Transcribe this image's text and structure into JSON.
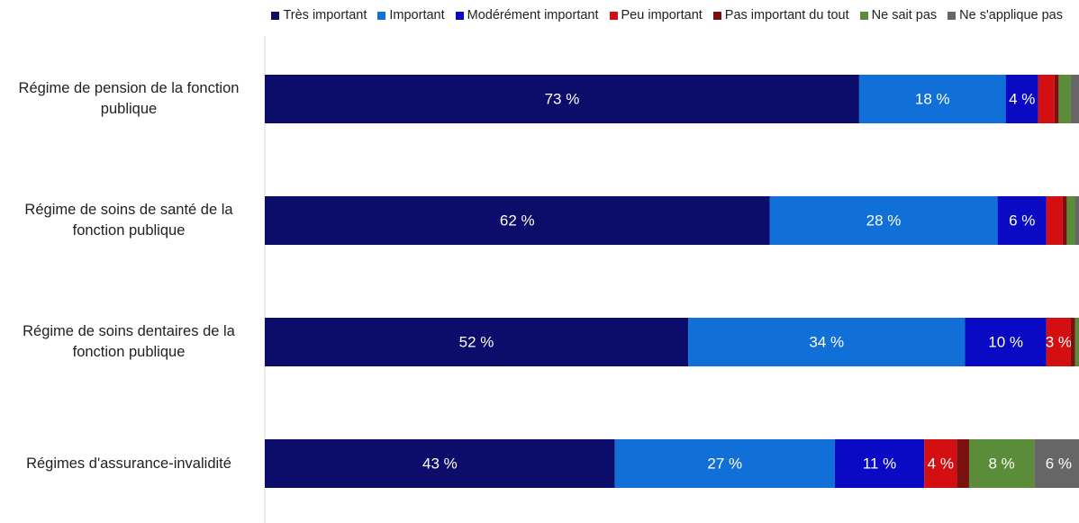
{
  "chart_data": {
    "type": "stacked-bar-horizontal",
    "categories": [
      "Régime de pension de la fonction publique",
      "Régime de soins de santé de la fonction publique",
      "Régime de soins dentaires de la fonction publique",
      "Régimes d'assurance-invalidité"
    ],
    "series": [
      {
        "name": "Très important",
        "color": "#0c0c6b",
        "values": [
          73,
          62,
          52,
          43
        ],
        "value_labels": [
          "73 %",
          "62 %",
          "52 %",
          "43 %"
        ]
      },
      {
        "name": "Important",
        "color": "#1170d8",
        "values": [
          18,
          28,
          34,
          27
        ],
        "value_labels": [
          "18 %",
          "28 %",
          "34 %",
          "27 %"
        ]
      },
      {
        "name": "Modérément important",
        "color": "#0a0ac4",
        "values": [
          4,
          6,
          10,
          11
        ],
        "value_labels": [
          "4 %",
          "6 %",
          "10 %",
          "11 %"
        ]
      },
      {
        "name": "Peu important",
        "color": "#d40f12",
        "values": [
          2,
          2,
          3,
          4
        ],
        "value_labels": [
          null,
          null,
          "3 %",
          "4 %"
        ]
      },
      {
        "name": "Pas important du tout",
        "color": "#7a1010",
        "values": [
          0.5,
          0.5,
          0.5,
          1.5
        ],
        "value_labels": [
          null,
          null,
          null,
          null
        ]
      },
      {
        "name": "Ne sait pas",
        "color": "#5a8c3a",
        "values": [
          1.5,
          1,
          1,
          8
        ],
        "value_labels": [
          null,
          null,
          null,
          "8 %"
        ]
      },
      {
        "name": "Ne s'applique pas",
        "color": "#666666",
        "values": [
          1,
          0.5,
          0,
          6
        ],
        "value_labels": [
          null,
          null,
          null,
          "6 %"
        ]
      }
    ],
    "xlim": [
      0,
      100
    ]
  }
}
